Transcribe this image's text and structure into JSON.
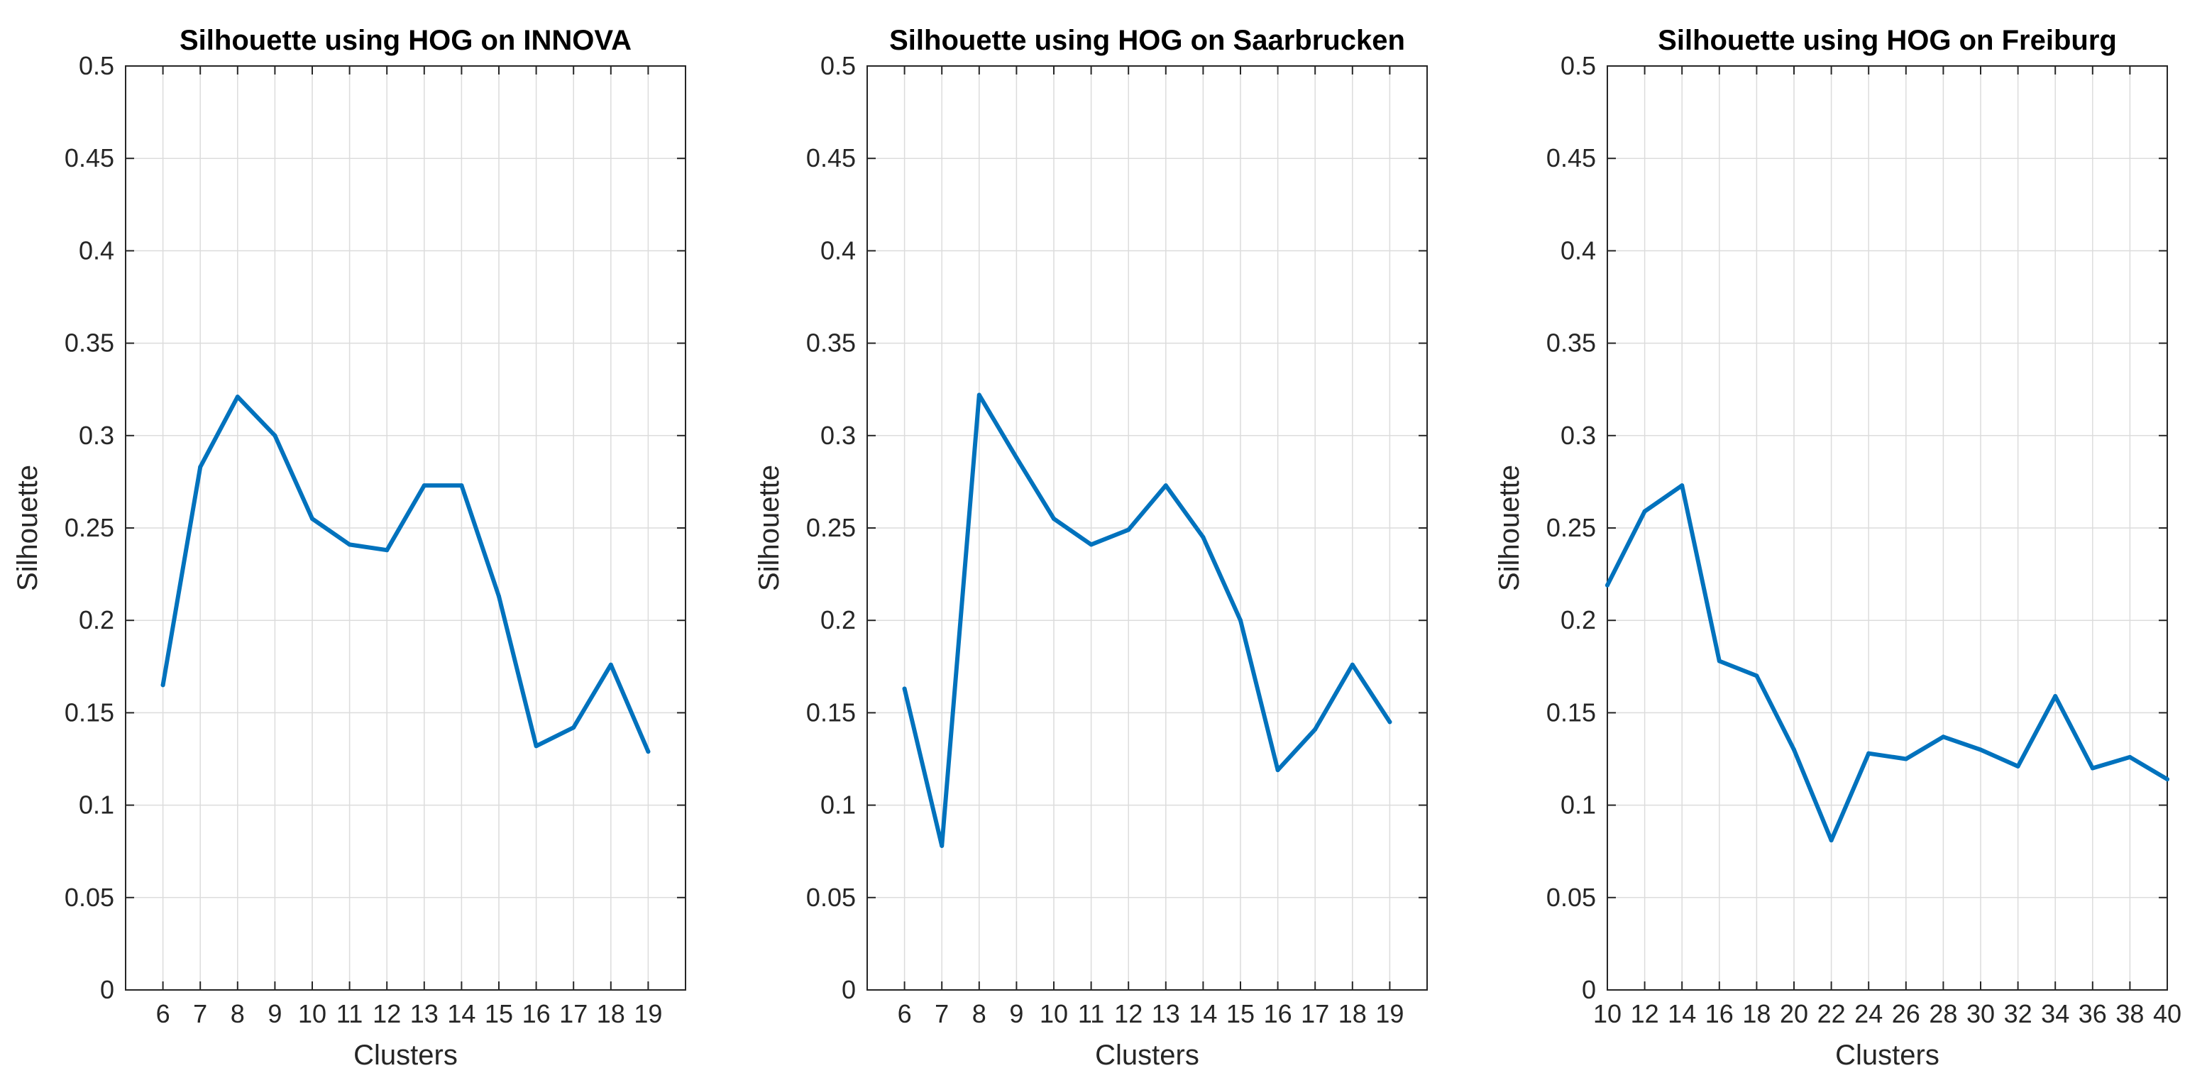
{
  "chart_data": [
    {
      "type": "line",
      "title": "Silhouette using HOG on INNOVA",
      "xlabel": "Clusters",
      "ylabel": "Silhouette",
      "xlim": [
        5,
        20
      ],
      "ylim": [
        0,
        0.5
      ],
      "grid": true,
      "xticks": [
        6,
        7,
        8,
        9,
        10,
        11,
        12,
        13,
        14,
        15,
        16,
        17,
        18,
        19
      ],
      "yticks": [
        0,
        0.05,
        0.1,
        0.15,
        0.2,
        0.25,
        0.3,
        0.35,
        0.4,
        0.45,
        0.5
      ],
      "ytick_labels": [
        "0",
        "0.05",
        "0.1",
        "0.15",
        "0.2",
        "0.25",
        "0.3",
        "0.35",
        "0.4",
        "0.45",
        "0.5"
      ],
      "color": "#0072BD",
      "series": [
        {
          "name": "Silhouette",
          "x": [
            6,
            7,
            8,
            9,
            10,
            11,
            12,
            13,
            14,
            15,
            16,
            17,
            18,
            19
          ],
          "values": [
            0.165,
            0.283,
            0.321,
            0.3,
            0.255,
            0.241,
            0.238,
            0.273,
            0.273,
            0.213,
            0.132,
            0.142,
            0.176,
            0.129
          ]
        }
      ]
    },
    {
      "type": "line",
      "title": "Silhouette using HOG on Saarbrucken",
      "xlabel": "Clusters",
      "ylabel": "Silhouette",
      "xlim": [
        5,
        20
      ],
      "ylim": [
        0,
        0.5
      ],
      "grid": true,
      "xticks": [
        6,
        7,
        8,
        9,
        10,
        11,
        12,
        13,
        14,
        15,
        16,
        17,
        18,
        19
      ],
      "yticks": [
        0,
        0.05,
        0.1,
        0.15,
        0.2,
        0.25,
        0.3,
        0.35,
        0.4,
        0.45,
        0.5
      ],
      "ytick_labels": [
        "0",
        "0.05",
        "0.1",
        "0.15",
        "0.2",
        "0.25",
        "0.3",
        "0.35",
        "0.4",
        "0.45",
        "0.5"
      ],
      "color": "#0072BD",
      "series": [
        {
          "name": "Silhouette",
          "x": [
            6,
            7,
            8,
            9,
            10,
            11,
            12,
            13,
            14,
            15,
            16,
            17,
            18,
            19
          ],
          "values": [
            0.163,
            0.078,
            0.322,
            0.288,
            0.255,
            0.241,
            0.249,
            0.273,
            0.245,
            0.2,
            0.119,
            0.141,
            0.176,
            0.145
          ]
        }
      ]
    },
    {
      "type": "line",
      "title": "Silhouette using HOG on Freiburg",
      "xlabel": "Clusters",
      "ylabel": "Silhouette",
      "xlim": [
        10,
        40
      ],
      "ylim": [
        0,
        0.5
      ],
      "grid": true,
      "xticks": [
        10,
        12,
        14,
        16,
        18,
        20,
        22,
        24,
        26,
        28,
        30,
        32,
        34,
        36,
        38,
        40
      ],
      "yticks": [
        0,
        0.05,
        0.1,
        0.15,
        0.2,
        0.25,
        0.3,
        0.35,
        0.4,
        0.45,
        0.5
      ],
      "ytick_labels": [
        "0",
        "0.05",
        "0.1",
        "0.15",
        "0.2",
        "0.25",
        "0.3",
        "0.35",
        "0.4",
        "0.45",
        "0.5"
      ],
      "color": "#0072BD",
      "series": [
        {
          "name": "Silhouette",
          "x": [
            10,
            12,
            14,
            16,
            18,
            20,
            22,
            24,
            26,
            28,
            30,
            32,
            34,
            36,
            38,
            40
          ],
          "values": [
            0.219,
            0.259,
            0.273,
            0.178,
            0.17,
            0.13,
            0.081,
            0.128,
            0.125,
            0.137,
            0.13,
            0.121,
            0.159,
            0.12,
            0.126,
            0.114
          ]
        }
      ]
    }
  ]
}
